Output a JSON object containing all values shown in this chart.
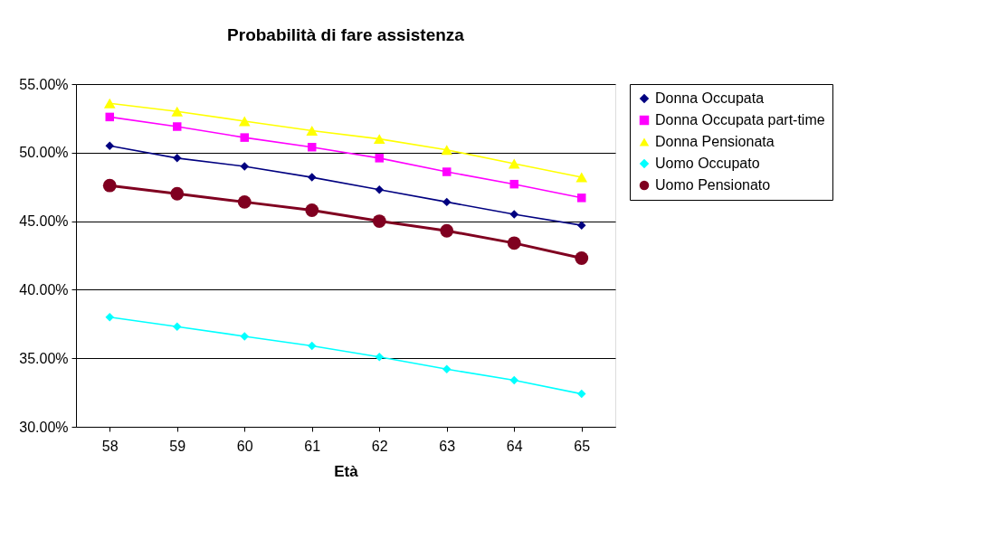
{
  "chart_data": {
    "type": "line",
    "title": "Probabilità di fare assistenza",
    "xlabel": "Età",
    "categories": [
      "58",
      "59",
      "60",
      "61",
      "62",
      "63",
      "64",
      "65"
    ],
    "series": [
      {
        "name": "Donna Occupata",
        "color": "#000080",
        "marker": "diamond",
        "values": [
          50.5,
          49.6,
          49.0,
          48.2,
          47.3,
          46.4,
          45.5,
          44.7
        ]
      },
      {
        "name": "Donna Occupata part-time",
        "color": "#ff00ff",
        "marker": "square",
        "values": [
          52.6,
          51.9,
          51.1,
          50.4,
          49.6,
          48.6,
          47.7,
          46.7
        ]
      },
      {
        "name": "Donna Pensionata",
        "color": "#ffff00",
        "marker": "triangle",
        "values": [
          53.6,
          53.0,
          52.3,
          51.6,
          51.0,
          50.2,
          49.2,
          48.2
        ]
      },
      {
        "name": "Uomo Occupato",
        "color": "#00ffff",
        "marker": "diamond",
        "values": [
          38.0,
          37.3,
          36.6,
          35.9,
          35.1,
          34.2,
          33.4,
          32.4
        ]
      },
      {
        "name": "Uomo Pensionato",
        "color": "#800020",
        "marker": "circle",
        "values": [
          47.6,
          47.0,
          46.4,
          45.8,
          45.0,
          44.3,
          43.4,
          42.3
        ]
      }
    ],
    "ylim": [
      30,
      55
    ],
    "yticks": [
      {
        "value": 30,
        "label": "30.00%"
      },
      {
        "value": 35,
        "label": "35.00%"
      },
      {
        "value": 40,
        "label": "40.00%"
      },
      {
        "value": 45,
        "label": "45.00%"
      },
      {
        "value": 50,
        "label": "50.00%"
      },
      {
        "value": 55,
        "label": "55.00%"
      }
    ],
    "grid": "y",
    "legend": "right",
    "line_style": "solid"
  }
}
